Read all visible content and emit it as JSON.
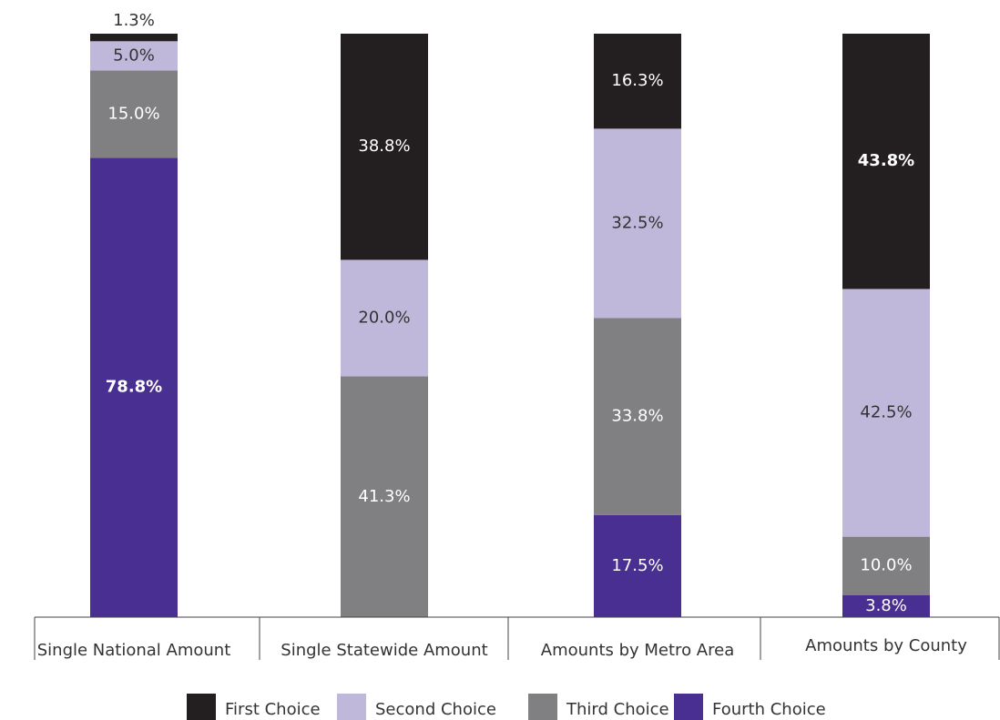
{
  "chart_data": {
    "type": "stacked_bar",
    "categories": [
      "Single National Amount",
      "Single Statewide Amount",
      "Amounts by Metro Area",
      "Amounts by County"
    ],
    "series": [
      {
        "name": "First Choice",
        "color": "#231f20",
        "values": [
          1.3,
          38.8,
          16.3,
          43.8
        ],
        "value_labels": [
          "1.3%",
          "38.8%",
          "16.3%",
          "43.8%"
        ]
      },
      {
        "name": "Second Choice",
        "color": "#c0b8da",
        "values": [
          5.0,
          20.0,
          32.5,
          42.5
        ],
        "value_labels": [
          "5.0%",
          "20.0%",
          "32.5%",
          "42.5%"
        ]
      },
      {
        "name": "Third Choice",
        "color": "#808083",
        "values": [
          15.0,
          41.3,
          33.8,
          10.0
        ],
        "value_labels": [
          "15.0%",
          "41.3%",
          "33.8%",
          "10.0%"
        ]
      },
      {
        "name": "Fourth Choice",
        "color": "#482f91",
        "values": [
          78.8,
          0,
          17.5,
          3.8
        ],
        "value_labels": [
          "78.8%",
          null,
          "17.5%",
          "3.8%"
        ]
      }
    ],
    "legend": "bottom"
  }
}
